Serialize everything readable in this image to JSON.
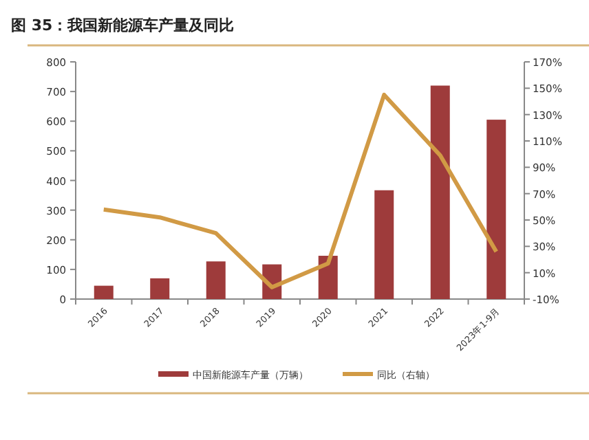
{
  "chart_data": {
    "type": "bar",
    "title": "图 35：我国新能源车产量及同比",
    "categories": [
      "2016",
      "2017",
      "2018",
      "2019",
      "2020",
      "2021",
      "2022",
      "2023年1-9月"
    ],
    "series": [
      {
        "name": "中国新能源车产量（万辆）",
        "color": "#9e3b3b",
        "values": [
          45,
          70,
          127,
          117,
          146,
          367,
          720,
          605
        ]
      },
      {
        "name": "同比（右轴）",
        "type": "line",
        "axis": "y2",
        "color": "#d19a45",
        "values": [
          58,
          52,
          40,
          -1,
          17,
          145,
          99,
          26
        ]
      }
    ],
    "ylim": [
      0,
      800
    ],
    "yticks": [
      0,
      100,
      200,
      300,
      400,
      500,
      600,
      700,
      800
    ],
    "y2lim": [
      -10,
      170
    ],
    "y2ticks": [
      {
        "value": -10,
        "label": "-10%"
      },
      {
        "value": 10,
        "label": "10%"
      },
      {
        "value": 30,
        "label": "30%"
      },
      {
        "value": 50,
        "label": "50%"
      },
      {
        "value": 70,
        "label": "70%"
      },
      {
        "value": 90,
        "label": "90%"
      },
      {
        "value": 110,
        "label": "110%"
      },
      {
        "value": 130,
        "label": "130%"
      },
      {
        "value": 150,
        "label": "150%"
      },
      {
        "value": 170,
        "label": "170%"
      }
    ],
    "legend": "bottom",
    "grid": false
  }
}
